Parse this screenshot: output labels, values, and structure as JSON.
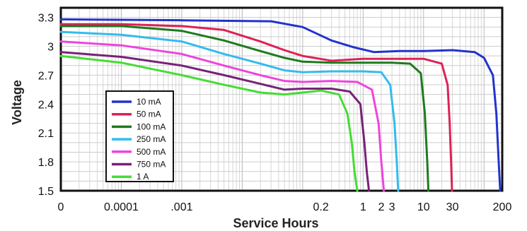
{
  "chart_data": {
    "type": "line",
    "xlabel": "Service Hours",
    "ylabel": "Voltage",
    "x_scale": "log",
    "x_range": [
      1e-05,
      200
    ],
    "ylim": [
      1.5,
      3.4
    ],
    "x_ticks": [
      {
        "label": "0",
        "value": 1e-05
      },
      {
        "label": "0.0001",
        "value": 0.0001
      },
      {
        "label": ".001",
        "value": 0.001
      },
      {
        "label": "0.2",
        "value": 0.2
      },
      {
        "label": "1",
        "value": 1
      },
      {
        "label": "2",
        "value": 2
      },
      {
        "label": "3",
        "value": 3
      },
      {
        "label": "10",
        "value": 10
      },
      {
        "label": "30",
        "value": 30
      },
      {
        "label": "200",
        "value": 200
      }
    ],
    "y_ticks": [
      {
        "label": "1.5",
        "value": 1.5
      },
      {
        "label": "1.8",
        "value": 1.8
      },
      {
        "label": "2.1",
        "value": 2.1
      },
      {
        "label": "2.4",
        "value": 2.4
      },
      {
        "label": "2.7",
        "value": 2.7
      },
      {
        "label": "3",
        "value": 3.0
      },
      {
        "label": "3.3",
        "value": 3.3
      }
    ],
    "grid": true,
    "legend_position": "bottom-left",
    "series": [
      {
        "name": "10 mA",
        "color": "#2233cc",
        "x": [
          1e-05,
          0.001,
          0.03,
          0.1,
          0.3,
          0.7,
          1.5,
          4,
          10,
          30,
          70,
          100,
          140,
          160,
          175,
          185
        ],
        "y": [
          3.28,
          3.27,
          3.26,
          3.2,
          3.06,
          2.99,
          2.94,
          2.95,
          2.95,
          2.96,
          2.94,
          2.88,
          2.7,
          2.3,
          1.8,
          1.5
        ]
      },
      {
        "name": "50 mA",
        "color": "#dd2255",
        "x": [
          1e-05,
          0.0001,
          0.001,
          0.005,
          0.02,
          0.05,
          0.1,
          0.3,
          1,
          3,
          10,
          20,
          25,
          27,
          28.5,
          29.5
        ],
        "y": [
          3.23,
          3.23,
          3.21,
          3.17,
          3.05,
          2.96,
          2.9,
          2.85,
          2.87,
          2.87,
          2.87,
          2.82,
          2.6,
          2.2,
          1.8,
          1.5
        ]
      },
      {
        "name": "100 mA",
        "color": "#1e7a1e",
        "x": [
          1e-05,
          0.0001,
          0.001,
          0.005,
          0.02,
          0.05,
          0.1,
          0.3,
          1,
          3,
          6,
          9,
          10.5,
          11.5,
          12
        ],
        "y": [
          3.21,
          3.21,
          3.16,
          3.06,
          2.95,
          2.88,
          2.84,
          2.83,
          2.83,
          2.83,
          2.82,
          2.72,
          2.3,
          1.8,
          1.5
        ]
      },
      {
        "name": "250 mA",
        "color": "#33bbee",
        "x": [
          1e-05,
          0.0001,
          0.001,
          0.005,
          0.02,
          0.05,
          0.1,
          0.3,
          1,
          2,
          2.8,
          3.3,
          3.6,
          3.8
        ],
        "y": [
          3.15,
          3.12,
          3.05,
          2.92,
          2.82,
          2.75,
          2.73,
          2.74,
          2.74,
          2.73,
          2.6,
          2.2,
          1.8,
          1.5
        ]
      },
      {
        "name": "500 mA",
        "color": "#ee44dd",
        "x": [
          1e-05,
          0.0001,
          0.001,
          0.005,
          0.02,
          0.05,
          0.1,
          0.3,
          0.8,
          1.4,
          1.8,
          2.0,
          2.2
        ],
        "y": [
          3.05,
          3.01,
          2.92,
          2.8,
          2.7,
          2.64,
          2.63,
          2.64,
          2.63,
          2.55,
          2.2,
          1.8,
          1.5
        ]
      },
      {
        "name": "750 mA",
        "color": "#772277",
        "x": [
          1e-05,
          0.0001,
          0.001,
          0.005,
          0.02,
          0.05,
          0.1,
          0.3,
          0.6,
          0.9,
          1.05,
          1.15,
          1.25
        ],
        "y": [
          2.94,
          2.89,
          2.8,
          2.7,
          2.61,
          2.55,
          2.56,
          2.56,
          2.53,
          2.4,
          2.0,
          1.7,
          1.5
        ]
      },
      {
        "name": "1 A",
        "color": "#44dd33",
        "x": [
          1e-05,
          0.0001,
          0.001,
          0.005,
          0.02,
          0.05,
          0.1,
          0.2,
          0.4,
          0.55,
          0.65,
          0.72,
          0.8
        ],
        "y": [
          2.9,
          2.83,
          2.7,
          2.6,
          2.52,
          2.5,
          2.52,
          2.54,
          2.5,
          2.3,
          2.0,
          1.7,
          1.5
        ]
      }
    ]
  }
}
